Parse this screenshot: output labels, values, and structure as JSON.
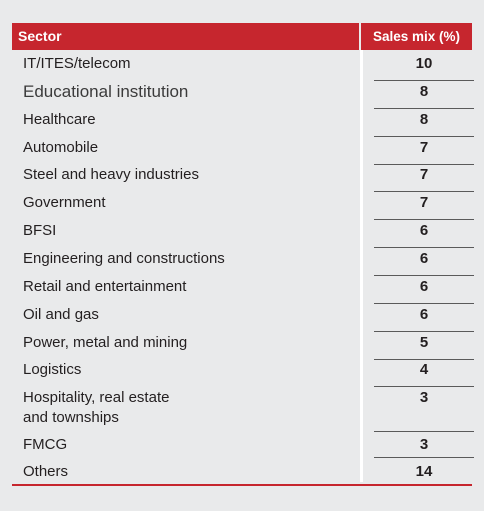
{
  "table": {
    "header": {
      "sector": "Sector",
      "sales_mix": "Sales mix (%)"
    },
    "rows": [
      {
        "sector": "IT/ITES/telecom",
        "value": "10"
      },
      {
        "sector": "Educational institution",
        "value": "8"
      },
      {
        "sector": "Healthcare",
        "value": "8"
      },
      {
        "sector": "Automobile",
        "value": "7"
      },
      {
        "sector": "Steel and heavy industries",
        "value": "7"
      },
      {
        "sector": "Government",
        "value": "7"
      },
      {
        "sector": "BFSI",
        "value": "6"
      },
      {
        "sector": "Engineering and constructions",
        "value": "6"
      },
      {
        "sector": "Retail and entertainment",
        "value": "6"
      },
      {
        "sector": "Oil and gas",
        "value": "6"
      },
      {
        "sector": "Power, metal and mining",
        "value": "5"
      },
      {
        "sector": "Logistics",
        "value": "4"
      },
      {
        "sector": "Hospitality, real estate and townships",
        "sector_line1": "Hospitality, real estate",
        "sector_line2": "and townships",
        "value": "3"
      },
      {
        "sector": "FMCG",
        "value": "3"
      },
      {
        "sector": "Others",
        "value": "14"
      }
    ]
  },
  "colors": {
    "accent": "#c6262e",
    "background": "#e9eaeb",
    "text": "#231f20"
  }
}
